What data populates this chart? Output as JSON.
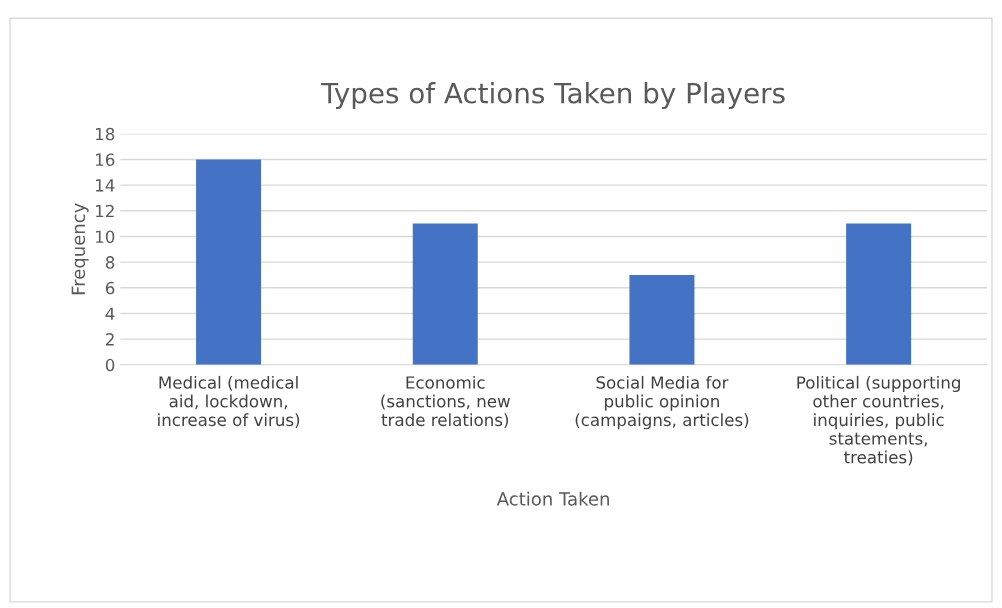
{
  "chart_data": {
    "type": "bar",
    "title": "Types of Actions Taken by Players",
    "xlabel": "Action Taken",
    "ylabel": "Frequency",
    "categories": [
      "Medical (medical\naid, lockdown,\nincrease of virus)",
      "Economic\n(sanctions, new\ntrade relations)",
      "Social Media for\npublic opinion\n(campaigns, articles)",
      "Political (supporting\nother countries,\ninquiries, public\nstatements,\ntreaties)"
    ],
    "values": [
      16,
      11,
      7,
      11
    ],
    "color": "#4472c4",
    "ylim": [
      0,
      18
    ],
    "yticks": [
      0,
      2,
      4,
      6,
      8,
      10,
      12,
      14,
      16,
      18
    ],
    "grid": "y"
  }
}
